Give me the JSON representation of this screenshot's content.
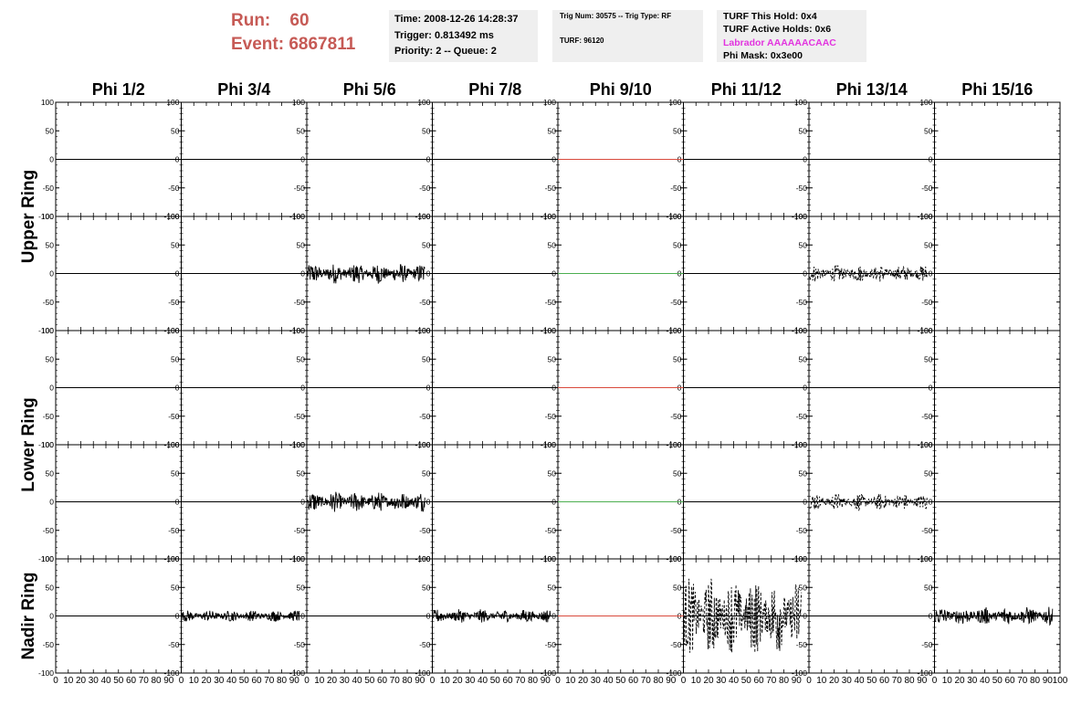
{
  "header": {
    "run_label": "Run:",
    "run_value": "60",
    "event_label": "Event:",
    "event_value": "6867811",
    "time": "Time: 2008-12-26 14:28:37",
    "trigger": "Trigger: 0.813492 ms",
    "priority": "Priority: 2 -- Queue: 2",
    "trig_num": "Trig Num: 30575 -- Trig Type: RF",
    "turf": "TURF: 96120",
    "turf_this_hold": "TURF This Hold: 0x4",
    "turf_active_holds": "TURF Active Holds: 0x6",
    "labrador": "Labrador AAAAAACAAC",
    "phi_mask": "Phi Mask: 0x3e00"
  },
  "colors": {
    "run_text": "#c65a55",
    "labrador_text": "#e233df",
    "masked_red": "#d94a3c",
    "masked_green": "#4caf50",
    "trace": "#000000"
  },
  "chart_data": {
    "type": "line",
    "columns": [
      "Phi 1/2",
      "Phi 3/4",
      "Phi 5/6",
      "Phi 7/8",
      "Phi 9/10",
      "Phi 11/12",
      "Phi 13/14",
      "Phi 15/16"
    ],
    "row_groups": [
      "Upper Ring",
      "Lower Ring",
      "Nadir Ring"
    ],
    "ylim": [
      -100,
      100
    ],
    "yticks": [
      "100",
      "50",
      "0",
      "-50",
      "-100"
    ],
    "xlim": [
      0,
      100
    ],
    "xticks": [
      "0",
      "10",
      "20",
      "30",
      "40",
      "50",
      "60",
      "70",
      "80",
      "90",
      "100"
    ],
    "traces": [
      {
        "row": 0,
        "col": 4,
        "style": "flat",
        "color": "red"
      },
      {
        "row": 1,
        "col": 2,
        "style": "noise",
        "amplitude": 18
      },
      {
        "row": 1,
        "col": 4,
        "style": "flat",
        "color": "green"
      },
      {
        "row": 1,
        "col": 6,
        "style": "dashed-noise",
        "amplitude": 15
      },
      {
        "row": 2,
        "col": 4,
        "style": "flat",
        "color": "red"
      },
      {
        "row": 3,
        "col": 2,
        "style": "noise",
        "amplitude": 18
      },
      {
        "row": 3,
        "col": 4,
        "style": "flat",
        "color": "green"
      },
      {
        "row": 3,
        "col": 6,
        "style": "dashed-noise",
        "amplitude": 15
      },
      {
        "row": 4,
        "col": 1,
        "style": "noise",
        "amplitude": 10
      },
      {
        "row": 4,
        "col": 3,
        "style": "noise",
        "amplitude": 12
      },
      {
        "row": 4,
        "col": 4,
        "style": "flat",
        "color": "red"
      },
      {
        "row": 4,
        "col": 5,
        "style": "dashed-noise",
        "amplitude": 70
      },
      {
        "row": 4,
        "col": 7,
        "style": "noise",
        "amplitude": 16
      }
    ]
  }
}
